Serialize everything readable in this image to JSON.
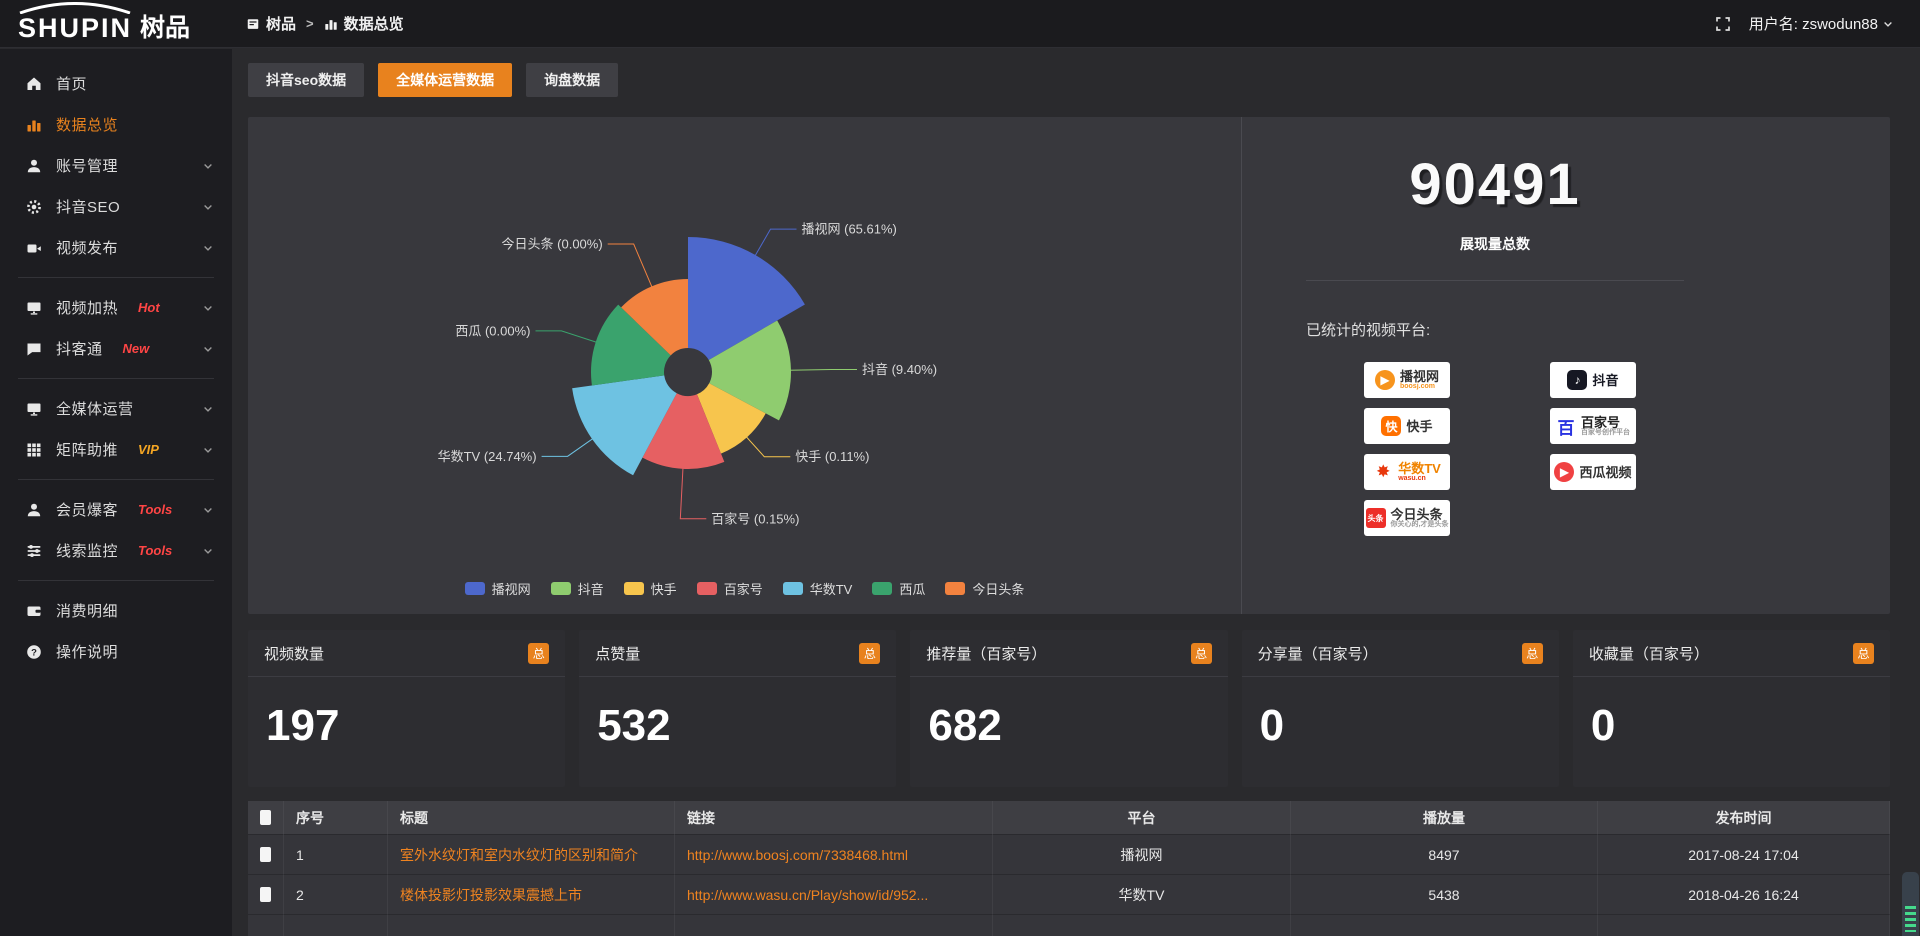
{
  "colors": {
    "accent": "#e8821e"
  },
  "logo": {
    "latin": "SHUPIN",
    "cjk": "树品"
  },
  "topbar": {
    "breadcrumb": [
      "树品",
      "数据总览"
    ],
    "username": "用户名: zswodun88"
  },
  "sidebar": {
    "groups": [
      {
        "items": [
          {
            "icon": "home",
            "label": "首页"
          },
          {
            "icon": "chart-bar",
            "label": "数据总览",
            "active": true
          },
          {
            "icon": "user",
            "label": "账号管理",
            "chevron": true
          },
          {
            "icon": "gear",
            "label": "抖音SEO",
            "chevron": true
          },
          {
            "icon": "video-camera",
            "label": "视频发布",
            "chevron": true
          }
        ]
      },
      {
        "items": [
          {
            "icon": "monitor",
            "label": "视频加热",
            "badge": "Hot",
            "badge_color": "#ff4545",
            "chevron": true
          },
          {
            "icon": "chat",
            "label": "抖客通",
            "badge": "New",
            "badge_color": "#ff4545",
            "chevron": true
          }
        ]
      },
      {
        "items": [
          {
            "icon": "monitor",
            "label": "全媒体运营",
            "chevron": true
          },
          {
            "icon": "grid",
            "label": "矩阵助推",
            "badge": "VIP",
            "badge_color": "#f5a623",
            "chevron": true
          }
        ]
      },
      {
        "items": [
          {
            "icon": "user",
            "label": "会员爆客",
            "badge": "Tools",
            "badge_color": "#ff4545",
            "chevron": true
          },
          {
            "icon": "sliders",
            "label": "线索监控",
            "badge": "Tools",
            "badge_color": "#ff4545",
            "chevron": true
          }
        ]
      },
      {
        "items": [
          {
            "icon": "wallet",
            "label": "消费明细"
          },
          {
            "icon": "question",
            "label": "操作说明"
          }
        ]
      }
    ]
  },
  "tabs": [
    {
      "label": "抖音seo数据"
    },
    {
      "label": "全媒体运营数据",
      "active": true
    },
    {
      "label": "询盘数据"
    }
  ],
  "chart_data": {
    "type": "pie",
    "variant": "rose",
    "inner_radius_px": 24,
    "legend_position": "bottom",
    "slices": [
      {
        "name": "播视网",
        "value_pct": 65.61,
        "label": "播视网 (65.61%)",
        "color": "#4d68cc",
        "outer_radius_px": 135,
        "angle_deg": 60,
        "label_side": "right"
      },
      {
        "name": "抖音",
        "value_pct": 9.4,
        "label": "抖音 (9.40%)",
        "color": "#8fcc6f",
        "outer_radius_px": 103,
        "angle_deg": 58,
        "label_side": "right"
      },
      {
        "name": "快手",
        "value_pct": 0.11,
        "label": "快手 (0.11%)",
        "color": "#f7c54d",
        "outer_radius_px": 88,
        "angle_deg": 40,
        "label_side": "right"
      },
      {
        "name": "百家号",
        "value_pct": 0.15,
        "label": "百家号 (0.15%)",
        "color": "#e66062",
        "outer_radius_px": 97,
        "angle_deg": 50,
        "label_side": "right"
      },
      {
        "name": "华数TV",
        "value_pct": 24.74,
        "label": "华数TV (24.74%)",
        "color": "#6ec2e2",
        "outer_radius_px": 117,
        "angle_deg": 54,
        "label_side": "left"
      },
      {
        "name": "西瓜",
        "value_pct": 0.0,
        "label": "西瓜 (0.00%)",
        "color": "#3aa36d",
        "outer_radius_px": 97,
        "angle_deg": 52,
        "label_side": "left"
      },
      {
        "name": "今日头条",
        "value_pct": 0.0,
        "label": "今日头条 (0.00%)",
        "color": "#f2823f",
        "outer_radius_px": 93,
        "angle_deg": 46,
        "label_side": "left"
      }
    ]
  },
  "summary": {
    "total": "90491",
    "total_label": "展现量总数",
    "platforms_title": "已统计的视频平台:",
    "platforms_left": [
      {
        "name": "播视网",
        "sub": "boosj.com",
        "sub_color": "#f7941d",
        "logo_char": "▶",
        "logo_color": "#f7941d",
        "logo_shape": "circle",
        "name_color": "#333"
      },
      {
        "name": "快手",
        "logo_char": "快",
        "logo_color": "#ff7000",
        "logo_shape": "round",
        "name_color": "#333"
      },
      {
        "name": "华数TV",
        "sub": "wasu.cn",
        "sub_color": "#e8380d",
        "logo_char": "✸",
        "logo_color": "#e8380d",
        "logo_shape": "plain",
        "name_color": "#f08300"
      },
      {
        "name": "今日头条",
        "sub": "你关心的,才是头条",
        "sub_color": "#999999",
        "logo_char": "头条",
        "logo_color": "#ed2f29",
        "logo_shape": "square",
        "name_color": "#333"
      }
    ],
    "platforms_right": [
      {
        "name": "抖音",
        "logo_char": "♪",
        "logo_color": "#161823",
        "logo_shape": "round",
        "name_color": "#161823"
      },
      {
        "name": "百家号",
        "sub": "百家号创作平台",
        "sub_color": "#999999",
        "logo_char": "百",
        "logo_color": "#2932e1",
        "logo_shape": "plain",
        "name_color": "#222"
      },
      {
        "name": "西瓜视频",
        "logo_char": "▶",
        "logo_color": "#f04142",
        "logo_shape": "circle",
        "name_color": "#333"
      }
    ]
  },
  "stat_cards": [
    {
      "label": "视频数量",
      "badge": "总",
      "value": "197"
    },
    {
      "label": "点赞量",
      "badge": "总",
      "value": "532"
    },
    {
      "label": "推荐量（百家号）",
      "badge": "总",
      "value": "682"
    },
    {
      "label": "分享量（百家号）",
      "badge": "总",
      "value": "0"
    },
    {
      "label": "收藏量（百家号）",
      "badge": "总",
      "value": "0"
    }
  ],
  "table": {
    "headers": [
      "序号",
      "标题",
      "链接",
      "平台",
      "播放量",
      "发布时间"
    ],
    "rows": [
      {
        "no": "1",
        "title": "室外水纹灯和室内水纹灯的区别和简介",
        "link": "http://www.boosj.com/7338468.html",
        "platform": "播视网",
        "plays": "8497",
        "time": "2017-08-24 17:04"
      },
      {
        "no": "2",
        "title": "楼体投影灯投影效果震撼上市",
        "link": "http://www.wasu.cn/Play/show/id/952...",
        "platform": "华数TV",
        "plays": "5438",
        "time": "2018-04-26 16:24"
      }
    ]
  }
}
